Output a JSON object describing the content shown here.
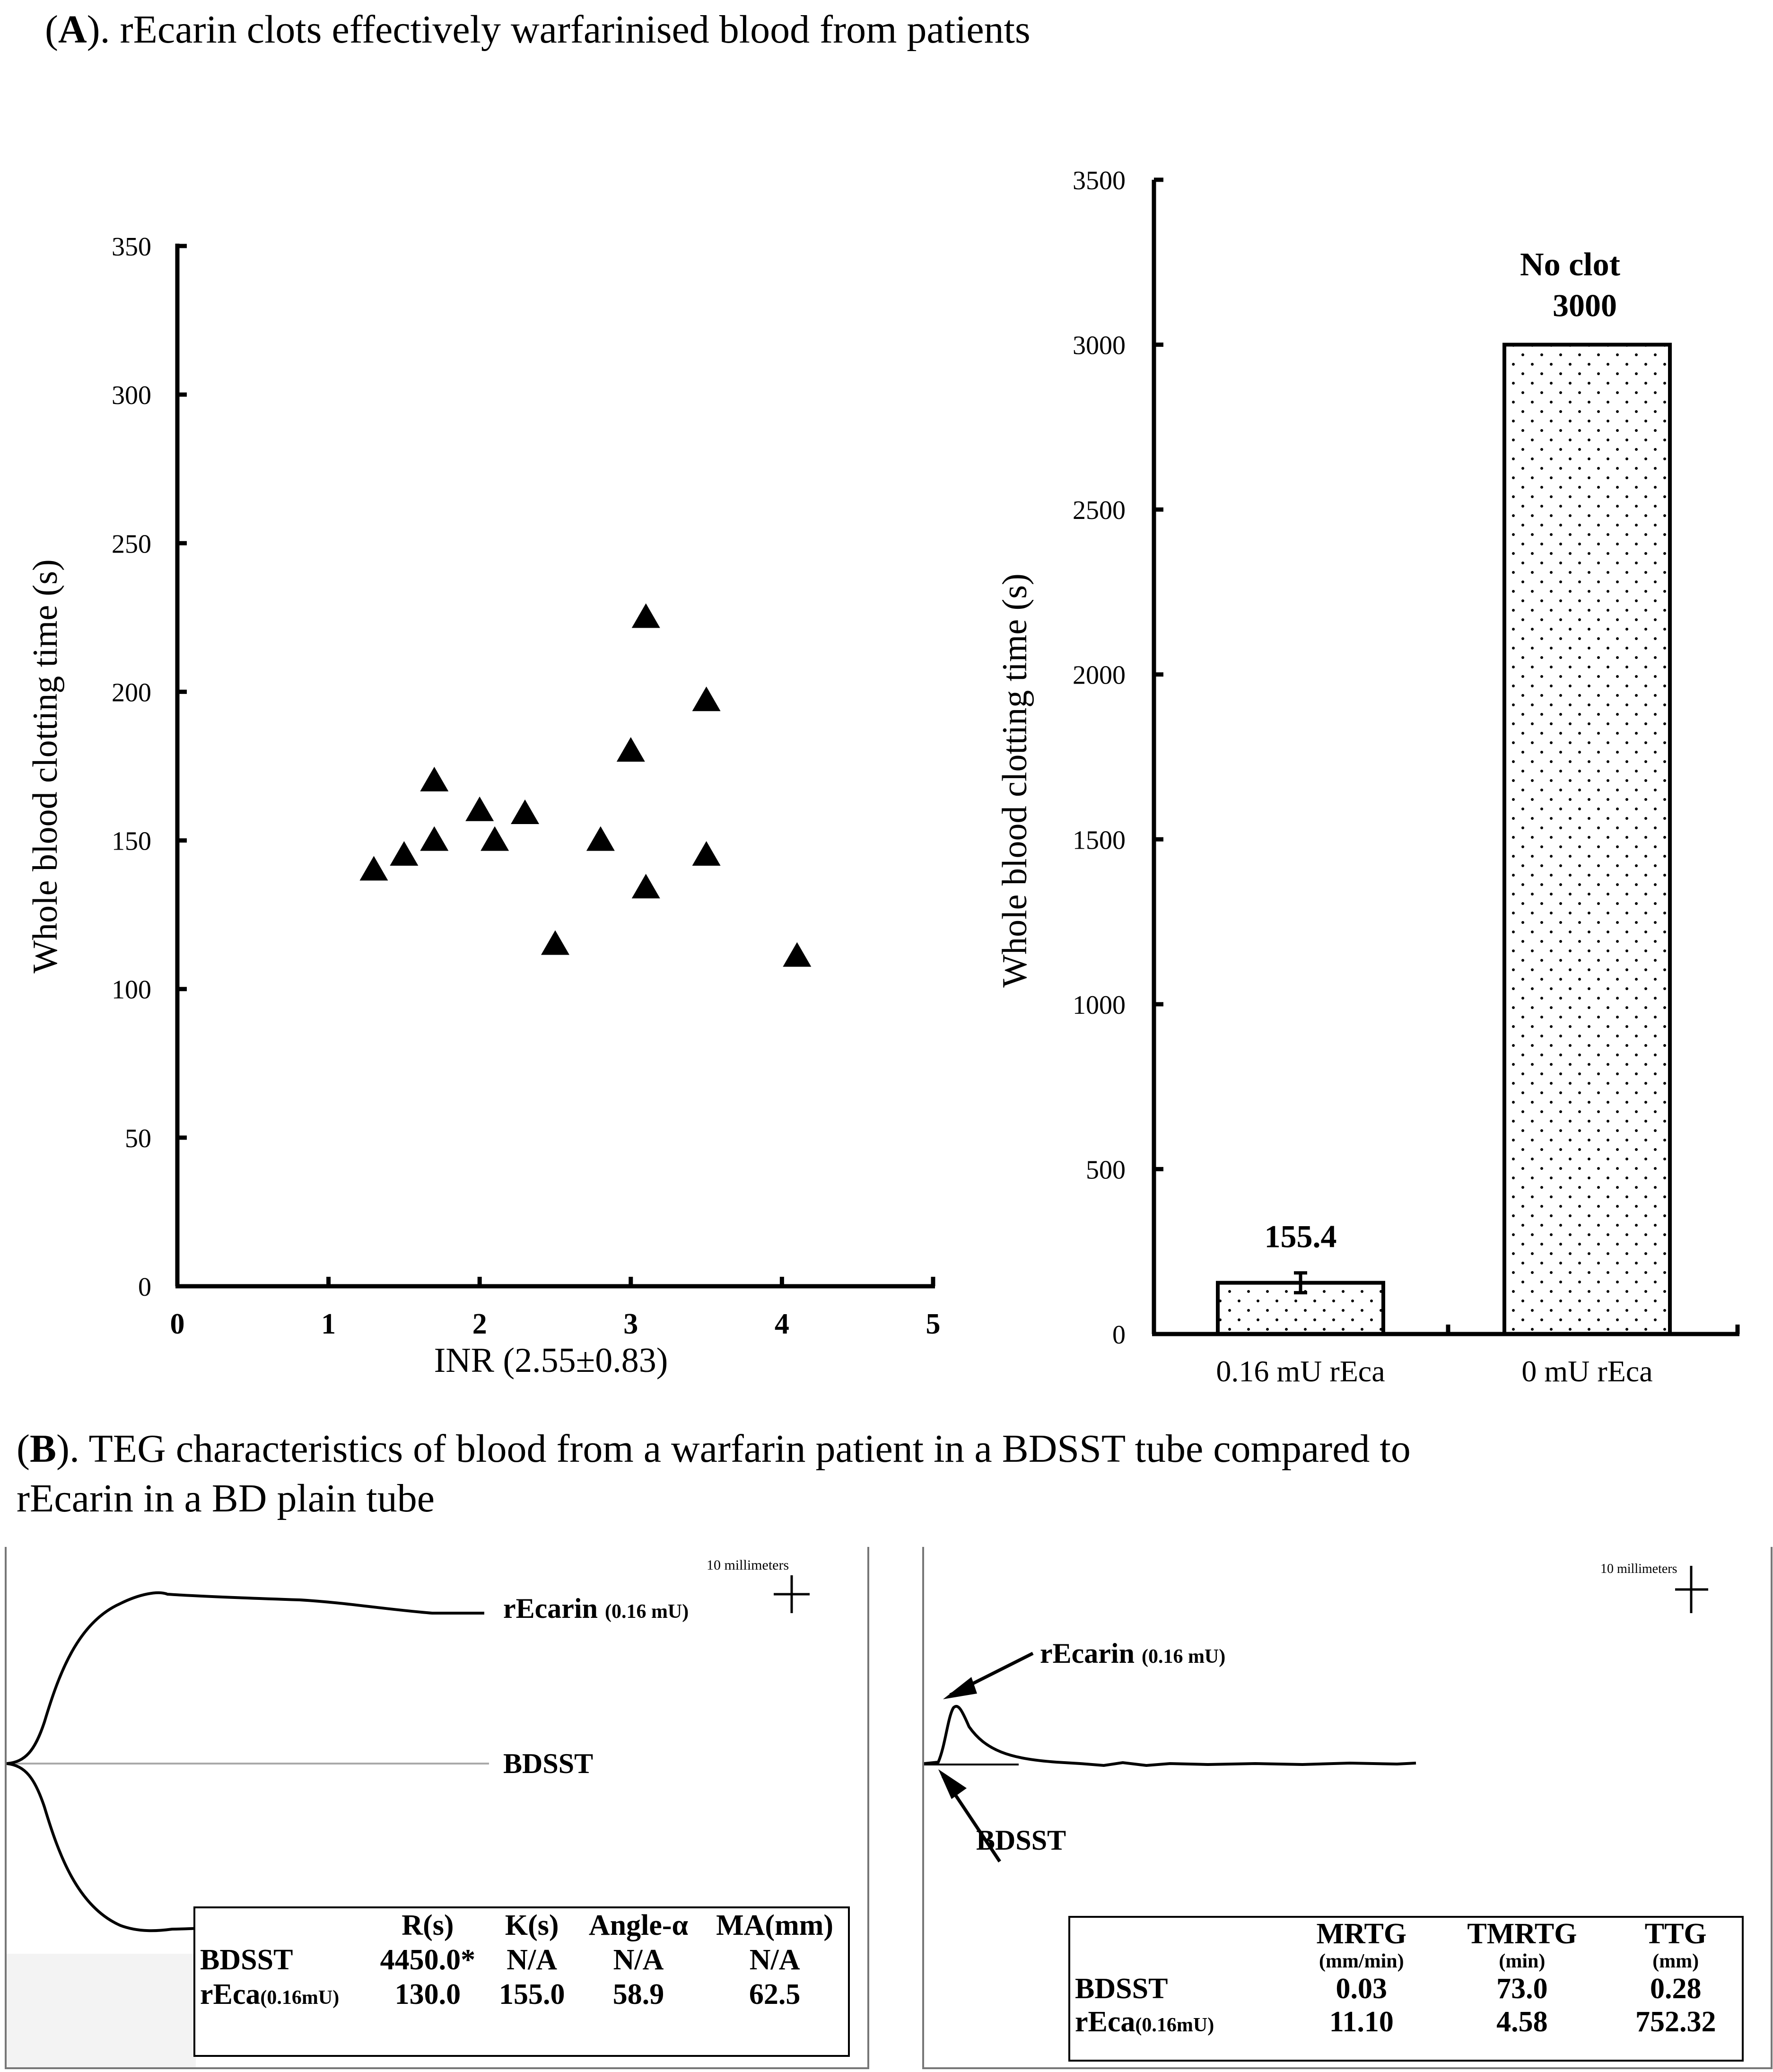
{
  "panel_a": {
    "label": "A",
    "title_rest": "). rEcarin clots effectively warfarinised blood from patients"
  },
  "panel_b": {
    "label": "B",
    "title_rest": "). TEG characteristics of blood from a warfarin patient in a BDSST tube compared to",
    "title_line2": "rEcarin in a BD plain tube"
  },
  "chart_data": [
    {
      "type": "scatter",
      "marker": "filled-triangle",
      "xlabel": "INR (2.55±0.83)",
      "ylabel": "Whole blood clotting time (s)",
      "xlim": [
        0,
        5
      ],
      "ylim": [
        0,
        350
      ],
      "xticks": [
        "0",
        "1",
        "2",
        "3",
        "4",
        "5"
      ],
      "yticks": [
        "0",
        "50",
        "100",
        "150",
        "200",
        "250",
        "300",
        "350"
      ],
      "points": [
        {
          "x": 1.3,
          "y": 140
        },
        {
          "x": 1.5,
          "y": 145
        },
        {
          "x": 1.7,
          "y": 150
        },
        {
          "x": 1.7,
          "y": 170
        },
        {
          "x": 2.0,
          "y": 160
        },
        {
          "x": 2.1,
          "y": 150
        },
        {
          "x": 2.3,
          "y": 159
        },
        {
          "x": 2.5,
          "y": 115
        },
        {
          "x": 2.8,
          "y": 150
        },
        {
          "x": 3.0,
          "y": 180
        },
        {
          "x": 3.1,
          "y": 225
        },
        {
          "x": 3.1,
          "y": 134
        },
        {
          "x": 3.5,
          "y": 197
        },
        {
          "x": 3.5,
          "y": 145
        },
        {
          "x": 4.1,
          "y": 111
        }
      ]
    },
    {
      "type": "bar",
      "ylabel": "Whole blood clotting time (s)",
      "ylim": [
        0,
        3500
      ],
      "yticks": [
        "0",
        "500",
        "1000",
        "1500",
        "2000",
        "2500",
        "3000",
        "3500"
      ],
      "categories": [
        "0.16 mU rEca",
        "0 mU rEca"
      ],
      "values": [
        155.4,
        3000
      ],
      "errors": [
        30,
        0
      ],
      "data_labels": [
        "155.4",
        "3000"
      ],
      "annotations": [
        "No clot"
      ]
    },
    {
      "type": "line",
      "title": "TEG trace (left)",
      "scale_label": "10 millimeters",
      "series": [
        {
          "name": "rEcarin",
          "suffix": "(0.16 mU)",
          "description": "amplitude rises to about 62.5 mm and stays open"
        },
        {
          "name": "BDSST",
          "description": "flat line, no clot"
        }
      ]
    },
    {
      "type": "line",
      "title": "TEG velocity curve (right)",
      "scale_label": "10 millimeters",
      "series": [
        {
          "name": "rEcarin",
          "suffix": "(0.16 mU)",
          "description": "early sharp peak then returns to baseline"
        },
        {
          "name": "BDSST",
          "description": "flat baseline"
        }
      ]
    }
  ],
  "teg_table_left": {
    "headers": [
      "",
      "R(s)",
      "K(s)",
      "Angle-α",
      "MA(mm)"
    ],
    "rows": [
      {
        "label": "BDSST",
        "label_suffix": "",
        "cells": [
          "4450.0*",
          "N/A",
          "N/A",
          "N/A"
        ]
      },
      {
        "label": "rEca",
        "label_suffix": "(0.16mU)",
        "cells": [
          "130.0",
          "155.0",
          "58.9",
          "62.5"
        ]
      }
    ]
  },
  "teg_table_right": {
    "headers": [
      "",
      "MRTG",
      "TMRTG",
      "TTG"
    ],
    "units": [
      "",
      "(mm/min)",
      "(min)",
      "(mm)"
    ],
    "rows": [
      {
        "label": "BDSST",
        "label_suffix": "",
        "cells": [
          "0.03",
          "73.0",
          "0.28"
        ]
      },
      {
        "label": "rEca",
        "label_suffix": "(0.16mU)",
        "cells": [
          "11.10",
          "4.58",
          "752.32"
        ]
      }
    ]
  }
}
